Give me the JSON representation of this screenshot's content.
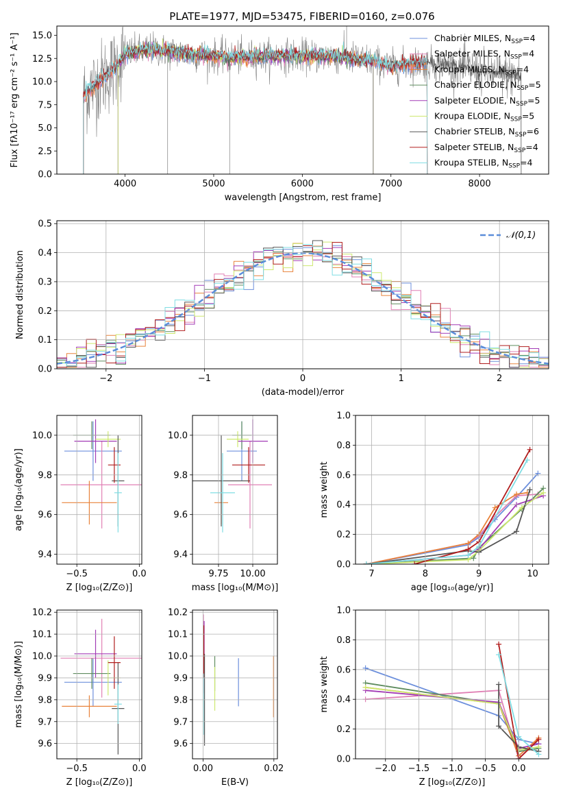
{
  "figure_title": "PLATE=1977, MJD=53475, FIBERID=0160, z=0.076",
  "colors": {
    "Chabrier MILES": "#6c8fdc",
    "Salpeter MILES": "#e07fb4",
    "Kroupa MILES": "#e8823a",
    "Chabrier ELODIE": "#5e8c5e",
    "Salpeter ELODIE": "#a23ab5",
    "Kroupa ELODIE": "#cde86e",
    "Chabrier STELIB": "#555555",
    "Salpeter STELIB": "#b01c1c",
    "Kroupa STELIB": "#7fdde3",
    "data": "#7f7f7f",
    "gaussian": "#5b8dd9",
    "grid": "#b0b0b0"
  },
  "chart_data": [
    {
      "id": "spectrum",
      "type": "line",
      "xlabel": "wavelength [Angstrom, rest frame]",
      "ylabel": "Flux [fλ10⁻¹⁷ erg cm⁻² s⁻¹ A⁻¹]",
      "xlim": [
        3230,
        8780
      ],
      "ylim": [
        0,
        16
      ],
      "xticks": [
        4000,
        5000,
        6000,
        7000,
        8000
      ],
      "yticks": [
        "0.0",
        "2.5",
        "5.0",
        "7.5",
        "10.0",
        "12.5",
        "15.0"
      ],
      "grid": false,
      "legend_position": "top-right",
      "legend": [
        "Chabrier MILES, N_SSP=4",
        "Salpeter MILES, N_SSP=4",
        "Kroupa MILES, N_SSP=4",
        "Chabrier ELODIE, N_SSP=5",
        "Salpeter ELODIE, N_SSP=5",
        "Kroupa ELODIE, N_SSP=5",
        "Chabrier STELIB, N_SSP=6",
        "Salpeter STELIB, N_SSP=4",
        "Kroupa STELIB, N_SSP=4"
      ],
      "model_ranges": [
        {
          "name": "Chabrier MILES",
          "range": [
            3530,
            7410
          ]
        },
        {
          "name": "Salpeter MILES",
          "range": [
            3530,
            7410
          ]
        },
        {
          "name": "Kroupa MILES",
          "range": [
            3530,
            7410
          ]
        },
        {
          "name": "Chabrier ELODIE",
          "range": [
            3920,
            6800
          ]
        },
        {
          "name": "Salpeter ELODIE",
          "range": [
            3920,
            6800
          ]
        },
        {
          "name": "Kroupa ELODIE",
          "range": [
            3920,
            6800
          ]
        },
        {
          "name": "Chabrier STELIB",
          "range": [
            3530,
            8470
          ]
        },
        {
          "name": "Salpeter STELIB",
          "range": [
            3530,
            7410
          ]
        },
        {
          "name": "Kroupa STELIB",
          "range": [
            3530,
            7410
          ]
        }
      ],
      "data_range": [
        3530,
        8470
      ],
      "continuum": [
        [
          3530,
          8.5
        ],
        [
          3700,
          10.0
        ],
        [
          3900,
          11.5
        ],
        [
          4000,
          13.0
        ],
        [
          4300,
          13.5
        ],
        [
          4700,
          13.0
        ],
        [
          5200,
          12.6
        ],
        [
          5800,
          12.8
        ],
        [
          6400,
          12.7
        ],
        [
          6800,
          12.2
        ],
        [
          7000,
          11.6
        ],
        [
          7300,
          12.0
        ],
        [
          7600,
          11.8
        ],
        [
          7900,
          11.3
        ],
        [
          8200,
          10.8
        ],
        [
          8470,
          10.5
        ]
      ]
    },
    {
      "id": "residual_hist",
      "type": "line",
      "xlabel": "(data-model)/error",
      "ylabel": "Normed distribution",
      "xlim": [
        -2.5,
        2.5
      ],
      "ylim": [
        0,
        0.51
      ],
      "xticks": [
        "−2",
        "−1",
        "0",
        "1",
        "2"
      ],
      "yticks": [
        "0.0",
        "0.1",
        "0.2",
        "0.3",
        "0.4",
        "0.5"
      ],
      "grid": true,
      "legend_position": "top-right",
      "legend": [
        "𝒩(0,1)"
      ],
      "bin_width": 0.1
    },
    {
      "id": "age_vs_Z",
      "type": "scatter",
      "xlabel": "Z [log₁₀(Z/Z⊙)]",
      "ylabel": "age  [log₁₀(age/yr)]",
      "xlim": [
        -0.66,
        0.02
      ],
      "ylim": [
        9.35,
        10.1
      ],
      "xticks": [
        -0.5,
        0
      ],
      "xtick_labels": [
        "−0.5",
        "0.0"
      ],
      "yticks": [
        9.4,
        9.6,
        9.8,
        10.0
      ],
      "grid": true,
      "points": [
        {
          "name": "Chabrier MILES",
          "x": -0.37,
          "xerr": 0.23,
          "y": 9.92,
          "yerr": 0.15
        },
        {
          "name": "Salpeter MILES",
          "x": -0.3,
          "xerr": 0.33,
          "y": 9.75,
          "yerr": 0.22
        },
        {
          "name": "Kroupa MILES",
          "x": -0.4,
          "xerr": 0.22,
          "y": 9.66,
          "yerr": 0.11
        },
        {
          "name": "Chabrier ELODIE",
          "x": -0.38,
          "xerr": 0.15,
          "y": 10.0,
          "yerr": 0.07
        },
        {
          "name": "Salpeter ELODIE",
          "x": -0.35,
          "xerr": 0.17,
          "y": 9.97,
          "yerr": 0.11
        },
        {
          "name": "Kroupa ELODIE",
          "x": -0.25,
          "xerr": 0.1,
          "y": 9.98,
          "yerr": 0.04
        },
        {
          "name": "Chabrier STELIB",
          "x": -0.17,
          "xerr": 0.05,
          "y": 9.77,
          "yerr": 0.23
        },
        {
          "name": "Salpeter STELIB",
          "x": -0.2,
          "xerr": 0.05,
          "y": 9.85,
          "yerr": 0.09
        },
        {
          "name": "Kroupa STELIB",
          "x": -0.17,
          "xerr": 0.03,
          "y": 9.71,
          "yerr": 0.2
        }
      ]
    },
    {
      "id": "age_vs_mass",
      "type": "scatter",
      "xlabel": "mass [log₁₀(M/M⊙)]",
      "xlim": [
        9.56,
        10.18
      ],
      "ylim": [
        9.35,
        10.1
      ],
      "xticks": [
        9.75,
        10.0
      ],
      "xtick_labels": [
        "9.75",
        "10.00"
      ],
      "yticks": [
        9.4,
        9.6,
        9.8,
        10.0
      ],
      "grid": true,
      "points": [
        {
          "name": "Chabrier MILES",
          "x": 9.92,
          "xerr": 0.11,
          "y": 9.92,
          "yerr": 0.15
        },
        {
          "name": "Salpeter MILES",
          "x": 9.98,
          "xerr": 0.16,
          "y": 9.75,
          "yerr": 0.22
        },
        {
          "name": "Kroupa MILES",
          "x": 9.77,
          "xerr": 0.05,
          "y": 9.66,
          "yerr": 0.11
        },
        {
          "name": "Chabrier ELODIE",
          "x": 9.92,
          "xerr": 0.07,
          "y": 10.0,
          "yerr": 0.07
        },
        {
          "name": "Salpeter ELODIE",
          "x": 10.0,
          "xerr": 0.11,
          "y": 9.97,
          "yerr": 0.11
        },
        {
          "name": "Kroupa ELODIE",
          "x": 9.89,
          "xerr": 0.08,
          "y": 9.98,
          "yerr": 0.04
        },
        {
          "name": "Chabrier STELIB",
          "x": 9.77,
          "xerr": 0.21,
          "y": 9.77,
          "yerr": 0.23
        },
        {
          "name": "Salpeter STELIB",
          "x": 9.97,
          "xerr": 0.12,
          "y": 9.85,
          "yerr": 0.09
        },
        {
          "name": "Kroupa STELIB",
          "x": 9.78,
          "xerr": 0.09,
          "y": 9.71,
          "yerr": 0.2
        }
      ]
    },
    {
      "id": "mass_weight_vs_age",
      "type": "line",
      "xlabel": "age  [log₁₀(age/yr)]",
      "ylabel": "mass weight",
      "xlim": [
        6.7,
        10.3
      ],
      "ylim": [
        0,
        1
      ],
      "xticks": [
        7,
        8,
        9,
        10
      ],
      "yticks": [
        "0.0",
        "0.2",
        "0.4",
        "0.6",
        "0.8",
        "1.0"
      ],
      "grid": true,
      "series": [
        {
          "name": "Chabrier MILES",
          "x": [
            6.9,
            8.8,
            9.0,
            9.3,
            9.7,
            10.1
          ],
          "y": [
            0.0,
            0.13,
            0.18,
            0.3,
            0.45,
            0.61
          ]
        },
        {
          "name": "Salpeter MILES",
          "x": [
            6.9,
            8.8,
            9.0,
            9.3,
            9.7,
            10.1
          ],
          "y": [
            0.0,
            0.14,
            0.19,
            0.32,
            0.46,
            0.47
          ]
        },
        {
          "name": "Kroupa MILES",
          "x": [
            6.9,
            8.8,
            9.0,
            9.3,
            9.7,
            9.9
          ],
          "y": [
            0.0,
            0.14,
            0.2,
            0.38,
            0.47,
            0.48
          ]
        },
        {
          "name": "Chabrier ELODIE",
          "x": [
            6.9,
            8.9,
            9.0,
            9.8,
            10.2
          ],
          "y": [
            0.0,
            0.04,
            0.11,
            0.37,
            0.51
          ]
        },
        {
          "name": "Salpeter ELODIE",
          "x": [
            6.9,
            8.8,
            9.0,
            9.7,
            10.2
          ],
          "y": [
            0.0,
            0.06,
            0.1,
            0.4,
            0.46
          ]
        },
        {
          "name": "Kroupa ELODIE",
          "x": [
            6.9,
            8.8,
            9.0,
            9.8,
            10.2
          ],
          "y": [
            0.0,
            0.03,
            0.09,
            0.38,
            0.48
          ]
        },
        {
          "name": "Chabrier STELIB",
          "x": [
            6.9,
            8.8,
            9.0,
            9.7,
            9.95
          ],
          "y": [
            0.0,
            0.09,
            0.08,
            0.22,
            0.5
          ]
        },
        {
          "name": "Salpeter STELIB",
          "x": [
            7.8,
            8.8,
            9.0,
            9.95
          ],
          "y": [
            0.0,
            0.1,
            0.15,
            0.77
          ]
        },
        {
          "name": "Kroupa STELIB",
          "x": [
            6.9,
            8.8,
            9.0,
            9.9
          ],
          "y": [
            0.0,
            0.06,
            0.12,
            0.7
          ]
        }
      ]
    },
    {
      "id": "mass_vs_Z",
      "type": "scatter",
      "xlabel": "Z [log₁₀(Z/Z⊙)]",
      "ylabel": "mass [log₁₀(M/M⊙)]",
      "xlim": [
        -0.66,
        0.02
      ],
      "ylim": [
        9.53,
        10.21
      ],
      "xticks": [
        -0.5,
        0
      ],
      "xtick_labels": [
        "−0.5",
        "0.0"
      ],
      "yticks": [
        9.6,
        9.7,
        9.8,
        9.9,
        10.0,
        10.1,
        10.2
      ],
      "grid": true,
      "points": [
        {
          "name": "Chabrier MILES",
          "x": -0.37,
          "xerr": 0.23,
          "y": 9.88,
          "yerr": 0.11
        },
        {
          "name": "Salpeter MILES",
          "x": -0.3,
          "xerr": 0.33,
          "y": 9.99,
          "yerr": 0.18
        },
        {
          "name": "Kroupa MILES",
          "x": -0.4,
          "xerr": 0.22,
          "y": 9.77,
          "yerr": 0.05
        },
        {
          "name": "Chabrier ELODIE",
          "x": -0.38,
          "xerr": 0.15,
          "y": 9.92,
          "yerr": 0.07
        },
        {
          "name": "Salpeter ELODIE",
          "x": -0.35,
          "xerr": 0.17,
          "y": 10.01,
          "yerr": 0.11
        },
        {
          "name": "Kroupa ELODIE",
          "x": -0.25,
          "xerr": 0.1,
          "y": 9.9,
          "yerr": 0.08
        },
        {
          "name": "Chabrier STELIB",
          "x": -0.17,
          "xerr": 0.05,
          "y": 9.76,
          "yerr": 0.21
        },
        {
          "name": "Salpeter STELIB",
          "x": -0.2,
          "xerr": 0.05,
          "y": 9.97,
          "yerr": 0.12
        },
        {
          "name": "Kroupa STELIB",
          "x": -0.17,
          "xerr": 0.03,
          "y": 9.78,
          "yerr": 0.09
        }
      ]
    },
    {
      "id": "mass_vs_ebv",
      "type": "scatter",
      "xlabel": "E(B-V)",
      "xlim": [
        -0.003,
        0.021
      ],
      "ylim": [
        9.53,
        10.21
      ],
      "xticks": [
        0,
        0.02
      ],
      "xtick_labels": [
        "0.00",
        "0.02"
      ],
      "yticks": [
        9.6,
        9.7,
        9.8,
        9.9,
        10.0,
        10.1,
        10.2
      ],
      "grid": true,
      "points": [
        {
          "name": "Chabrier MILES",
          "x": 0.01,
          "y": 9.88,
          "yerr": 0.11
        },
        {
          "name": "Salpeter MILES",
          "x": 0.0001,
          "y": 10.01,
          "yerr": 0.18
        },
        {
          "name": "Kroupa MILES",
          "x": 0.0199,
          "y": 9.86,
          "yerr": 0.14
        },
        {
          "name": "Chabrier ELODIE",
          "x": 0.0033,
          "y": 9.92,
          "yerr": 0.08
        },
        {
          "name": "Salpeter ELODIE",
          "x": 0.0003,
          "y": 10.06,
          "yerr": 0.1
        },
        {
          "name": "Kroupa ELODIE",
          "x": 0.0033,
          "y": 9.85,
          "yerr": 0.1
        },
        {
          "name": "Chabrier STELIB",
          "x": 0.0004,
          "y": 9.8,
          "yerr": 0.21
        },
        {
          "name": "Salpeter STELIB",
          "x": 0.0002,
          "y": 10.02,
          "yerr": 0.12
        },
        {
          "name": "Kroupa STELIB",
          "x": 0.0001,
          "y": 9.78,
          "yerr": 0.14
        }
      ]
    },
    {
      "id": "mass_weight_vs_Z",
      "type": "line",
      "xlabel": "Z [log₁₀(Z/Z⊙)]",
      "ylabel": "mass weight",
      "xlim": [
        -2.45,
        0.45
      ],
      "ylim": [
        0,
        1
      ],
      "xticks": [
        -2.0,
        -1.5,
        -1.0,
        -0.5,
        0.0
      ],
      "xtick_labels": [
        "−2.0",
        "−1.5",
        "−1.0",
        "−0.5",
        "0.0"
      ],
      "yticks": [
        "0.0",
        "0.2",
        "0.4",
        "0.6",
        "0.8",
        "1.0"
      ],
      "grid": true,
      "series": [
        {
          "name": "Chabrier MILES",
          "x": [
            -2.3,
            -0.3,
            0.0,
            0.3
          ],
          "y": [
            0.61,
            0.29,
            0.13,
            0.1
          ]
        },
        {
          "name": "Salpeter MILES",
          "x": [
            -2.3,
            -0.3,
            0.0,
            0.3
          ],
          "y": [
            0.4,
            0.46,
            0.0,
            0.14
          ]
        },
        {
          "name": "Kroupa MILES",
          "x": [
            -2.3,
            -0.3,
            0.0,
            0.3
          ],
          "y": [
            0.48,
            0.37,
            0.02,
            0.14
          ]
        },
        {
          "name": "Chabrier ELODIE",
          "x": [
            -2.3,
            -0.3,
            0.0,
            0.3
          ],
          "y": [
            0.51,
            0.37,
            0.05,
            0.07
          ]
        },
        {
          "name": "Salpeter ELODIE",
          "x": [
            -2.3,
            -0.3,
            0.0,
            0.3
          ],
          "y": [
            0.46,
            0.38,
            0.07,
            0.1
          ]
        },
        {
          "name": "Kroupa ELODIE",
          "x": [
            -2.3,
            -0.3,
            0.0,
            0.3
          ],
          "y": [
            0.48,
            0.37,
            0.06,
            0.08
          ]
        },
        {
          "name": "Chabrier STELIB",
          "x": [
            -0.3,
            -0.3,
            0.0,
            0.3
          ],
          "y": [
            0.5,
            0.22,
            0.08,
            0.05
          ]
        },
        {
          "name": "Salpeter STELIB",
          "x": [
            -0.3,
            0.0,
            0.3
          ],
          "y": [
            0.77,
            0.0,
            0.13
          ]
        },
        {
          "name": "Kroupa STELIB",
          "x": [
            -0.3,
            0.0,
            0.3
          ],
          "y": [
            0.7,
            0.15,
            0.03
          ]
        }
      ]
    }
  ]
}
